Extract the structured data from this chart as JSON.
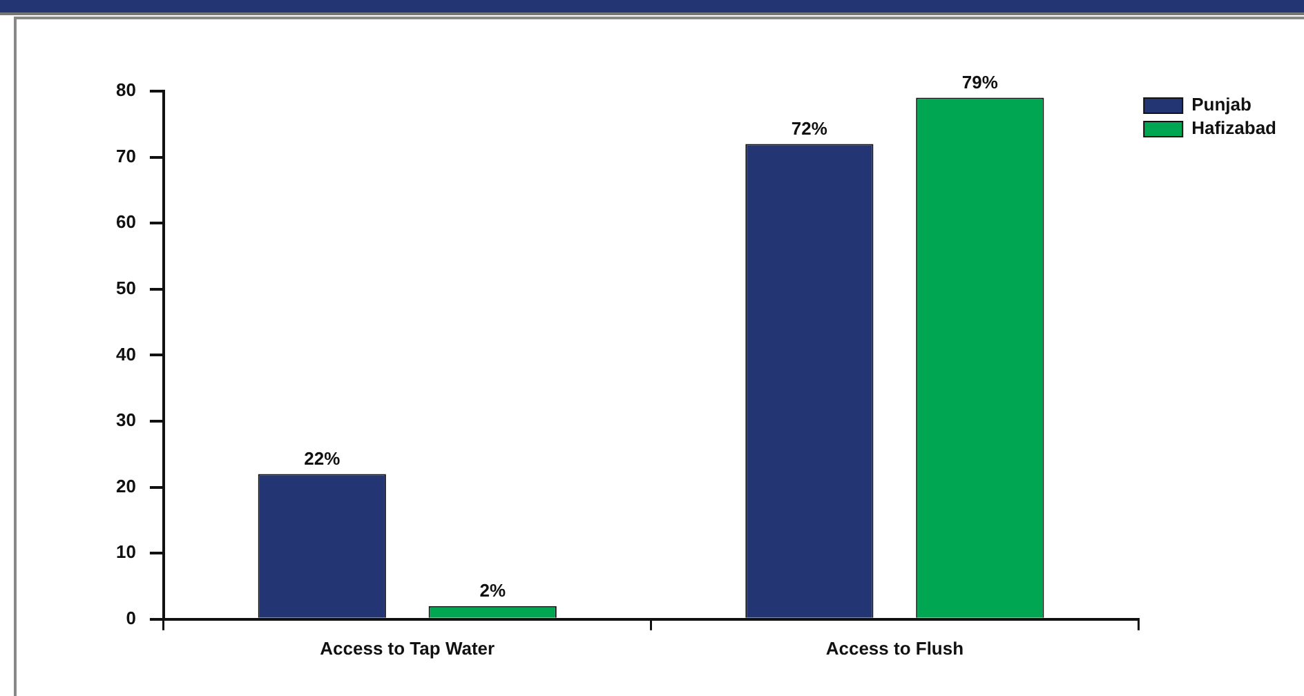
{
  "chart_data": {
    "type": "bar",
    "categories": [
      "Access to Tap Water",
      "Access to Flush"
    ],
    "series": [
      {
        "name": "Punjab",
        "color": "#233572",
        "values": [
          22,
          72
        ],
        "value_labels": [
          "22%",
          "72%"
        ]
      },
      {
        "name": "Hafizabad",
        "color": "#00a651",
        "values": [
          2,
          79
        ],
        "value_labels": [
          "2%",
          "79%"
        ]
      }
    ],
    "ylim": [
      0,
      80
    ],
    "yticks": [
      0,
      10,
      20,
      30,
      40,
      50,
      60,
      70,
      80
    ],
    "grid": false,
    "legend": "top right"
  }
}
